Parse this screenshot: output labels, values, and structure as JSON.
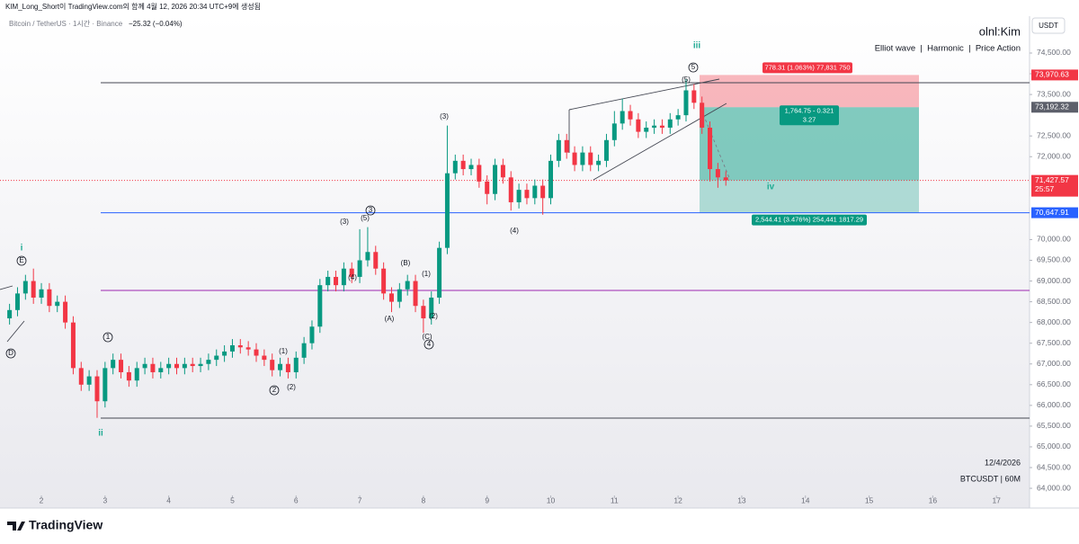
{
  "header": {
    "attribution": "KIM_Long_Short이 TradingView.com의 함께 4월 12, 2026 20:34 UTC+9에 생성됨",
    "title": "Bitcoin / TetherUS · 1시간 · Binance",
    "change": "−25.32 (−0.04%)",
    "author": "olnl:Kim",
    "tags": "Elliot wave  |  Harmonic  |  Price Action",
    "currency": "USDT"
  },
  "footer": {
    "date_stamp": "12/4/2026",
    "symbol_stamp": "BTCUSDT | 60M",
    "logo": "TradingView"
  },
  "chart_data": {
    "type": "candlestick",
    "up_color": "#089981",
    "down_color": "#f23645",
    "xlim": [
      1.35,
      17.52
    ],
    "ylim": [
      63524,
      75389
    ],
    "xticks": [
      2,
      3,
      4,
      5,
      6,
      7,
      8,
      9,
      10,
      11,
      12,
      13,
      14,
      15,
      16,
      17
    ],
    "yticks": [
      {
        "value": 74500,
        "label": "74,500.00"
      },
      {
        "value": 74000,
        "label": "74,000.00"
      },
      {
        "value": 73500,
        "label": "73,500.00"
      },
      {
        "value": 72500,
        "label": "72,500.00"
      },
      {
        "value": 72000,
        "label": "72,000.00"
      },
      {
        "value": 70000,
        "label": "70,000.00"
      },
      {
        "value": 69500,
        "label": "69,500.00"
      },
      {
        "value": 69000,
        "label": "69,000.00"
      },
      {
        "value": 68500,
        "label": "68,500.00"
      },
      {
        "value": 68000,
        "label": "68,000.00"
      },
      {
        "value": 67500,
        "label": "67,500.00"
      },
      {
        "value": 67000,
        "label": "67,000.00"
      },
      {
        "value": 66500,
        "label": "66,500.00"
      },
      {
        "value": 66000,
        "label": "66,000.00"
      },
      {
        "value": 65500,
        "label": "65,500.00"
      },
      {
        "value": 65000,
        "label": "65,000.00"
      },
      {
        "value": 64500,
        "label": "64,500.00"
      },
      {
        "value": 64000,
        "label": "64,000.00"
      }
    ],
    "x": [
      1.5,
      1.625,
      1.75,
      1.875,
      2,
      2.125,
      2.25,
      2.375,
      2.5,
      2.625,
      2.75,
      2.875,
      3,
      3.125,
      3.25,
      3.375,
      3.5,
      3.625,
      3.75,
      3.875,
      4,
      4.125,
      4.25,
      4.375,
      4.5,
      4.625,
      4.75,
      4.875,
      5,
      5.125,
      5.25,
      5.375,
      5.5,
      5.625,
      5.75,
      5.875,
      6,
      6.125,
      6.25,
      6.375,
      6.5,
      6.625,
      6.75,
      6.875,
      7,
      7.125,
      7.25,
      7.375,
      7.5,
      7.625,
      7.75,
      7.875,
      8,
      8.125,
      8.25,
      8.375,
      8.5,
      8.625,
      8.75,
      8.875,
      9,
      9.125,
      9.25,
      9.375,
      9.5,
      9.625,
      9.75,
      9.875,
      10,
      10.125,
      10.25,
      10.375,
      10.5,
      10.625,
      10.75,
      10.875,
      11,
      11.125,
      11.25,
      11.375,
      11.5,
      11.625,
      11.75,
      11.875,
      12,
      12.125,
      12.25,
      12.375,
      12.5,
      12.625,
      12.75
    ],
    "open": [
      68100,
      68300,
      68700,
      69000,
      68600,
      68800,
      68400,
      68500,
      68000,
      66900,
      66500,
      66700,
      66100,
      66900,
      67100,
      66800,
      66600,
      66900,
      67000,
      66800,
      66900,
      67000,
      66900,
      67000,
      66950,
      67000,
      67100,
      67200,
      67300,
      67450,
      67400,
      67350,
      67200,
      67100,
      66850,
      67000,
      66800,
      67150,
      67500,
      67900,
      68900,
      69100,
      68900,
      69300,
      69100,
      69500,
      69700,
      69300,
      68700,
      68500,
      68800,
      69000,
      68400,
      68100,
      68600,
      69800,
      71600,
      71900,
      71700,
      71800,
      71400,
      71100,
      71800,
      71500,
      70900,
      71200,
      71000,
      71300,
      71000,
      71900,
      72400,
      72100,
      71800,
      72100,
      71800,
      71900,
      72400,
      72800,
      73100,
      72900,
      72600,
      72700,
      72750,
      72700,
      72900,
      73000,
      73600,
      73300,
      72700,
      71700,
      71500
    ],
    "high": [
      68450,
      68850,
      69150,
      69300,
      68950,
      68950,
      68650,
      68650,
      68150,
      67050,
      66850,
      66850,
      67050,
      67250,
      67250,
      66950,
      67050,
      67150,
      67150,
      67050,
      67150,
      67150,
      67150,
      67150,
      67150,
      67250,
      67350,
      67450,
      67600,
      67600,
      67550,
      67500,
      67350,
      67250,
      67150,
      67150,
      67300,
      67650,
      68050,
      69050,
      69250,
      69250,
      69450,
      69450,
      70250,
      70300,
      69850,
      69450,
      68850,
      68950,
      69150,
      69150,
      68550,
      68750,
      69950,
      72750,
      72050,
      72050,
      71950,
      71950,
      71550,
      71950,
      71950,
      71650,
      71350,
      71350,
      71450,
      71450,
      72050,
      72550,
      72550,
      72250,
      72250,
      72250,
      72050,
      72550,
      73100,
      73400,
      73250,
      73050,
      72850,
      72900,
      72900,
      73050,
      73150,
      73870,
      73750,
      73450,
      72850,
      71850,
      71650
    ],
    "low": [
      67950,
      68150,
      68550,
      68450,
      68450,
      68250,
      68250,
      67850,
      66750,
      66350,
      66350,
      65700,
      65950,
      66750,
      66650,
      66450,
      66450,
      66750,
      66650,
      66650,
      66750,
      66750,
      66750,
      66800,
      66800,
      66850,
      66950,
      67050,
      67150,
      67250,
      67200,
      67050,
      66950,
      66700,
      66700,
      66650,
      66650,
      67000,
      67350,
      67750,
      68750,
      68750,
      68750,
      68950,
      68950,
      69350,
      69150,
      68550,
      68250,
      68350,
      68650,
      68250,
      67750,
      67950,
      68450,
      69650,
      71450,
      71550,
      71550,
      71250,
      70850,
      70950,
      71350,
      70700,
      70750,
      70850,
      70850,
      70600,
      70850,
      71750,
      71950,
      71650,
      71650,
      71650,
      71650,
      71750,
      72250,
      72650,
      72750,
      72450,
      72450,
      72550,
      72550,
      72550,
      72750,
      72850,
      73150,
      72550,
      71400,
      71250,
      71300
    ],
    "close": [
      68300,
      68700,
      69000,
      68600,
      68800,
      68400,
      68500,
      68000,
      66900,
      66500,
      66700,
      66100,
      66900,
      67100,
      66800,
      66600,
      66900,
      67000,
      66800,
      66900,
      67000,
      66900,
      67000,
      66950,
      67000,
      67100,
      67200,
      67300,
      67450,
      67400,
      67350,
      67200,
      67100,
      66850,
      67000,
      66800,
      67150,
      67500,
      67900,
      68900,
      69100,
      68900,
      69300,
      69100,
      69500,
      69700,
      69300,
      68700,
      68500,
      68800,
      69000,
      68400,
      68100,
      68600,
      69800,
      71600,
      71900,
      71700,
      71800,
      71400,
      71100,
      71800,
      71500,
      70900,
      71200,
      71000,
      71300,
      71000,
      71900,
      72400,
      72100,
      71800,
      72100,
      71800,
      71900,
      72400,
      72800,
      73100,
      72900,
      72600,
      72700,
      72750,
      72700,
      72900,
      73000,
      73600,
      73300,
      72700,
      71700,
      71500,
      71427.57
    ],
    "price_badges": [
      {
        "value": 73970.63,
        "label": "73,970.63",
        "color": "#f23645"
      },
      {
        "value": 73192.32,
        "label": "73,192.32",
        "color": "#5d606b"
      },
      {
        "value": 71427.57,
        "label": "71,427.57",
        "color": "#f23645"
      },
      {
        "value": 70647.91,
        "label": "70,647.91",
        "color": "#2962ff"
      }
    ],
    "countdown": "25:57",
    "position_tool": {
      "stop_label": "778.31 (1.063%) 77,831 750",
      "ratio_label": "1,764.75 - 0.321",
      "rr_label": "3.27",
      "target_label": "2,544.41 (3.476%) 254,441 1817.29"
    },
    "annotations": [
      "i",
      "E",
      "D",
      "ii",
      "1",
      "2",
      "(1)",
      "(2)",
      "(3)",
      "(5)",
      "3",
      "(4)",
      "(B)",
      "(A)",
      "(1)",
      "(2)",
      "(C)",
      "4",
      "(3)",
      "(4)",
      "5",
      "(5)",
      "iii",
      "iv"
    ]
  }
}
